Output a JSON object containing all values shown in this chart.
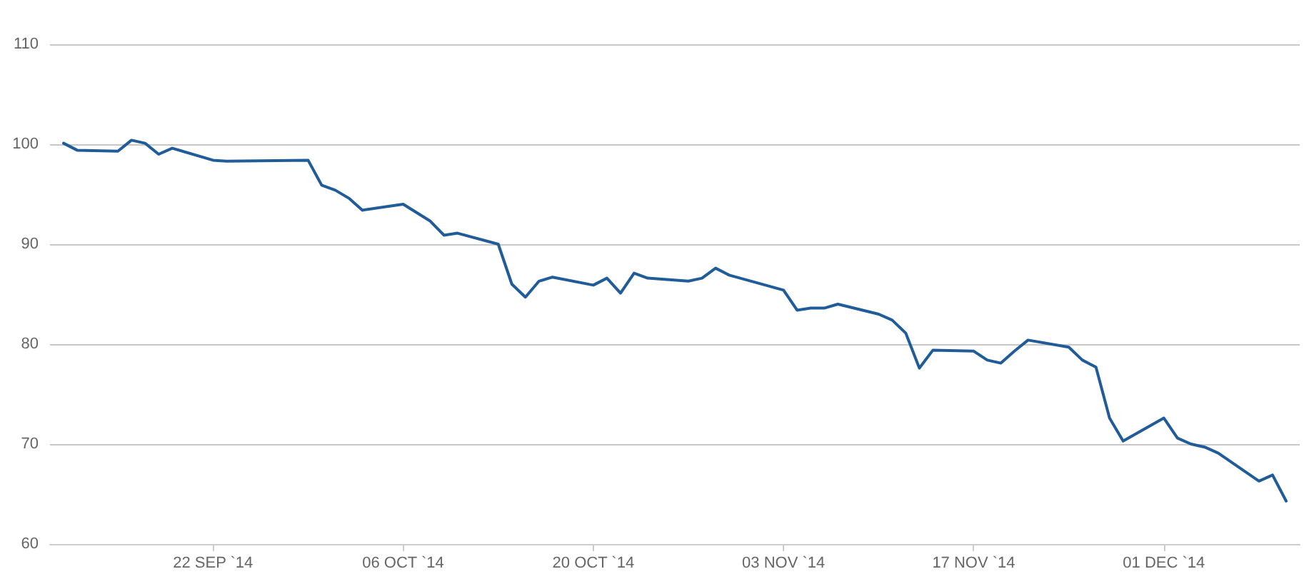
{
  "chart_data": {
    "type": "line",
    "x": [
      "2014-09-11",
      "2014-09-12",
      "2014-09-15",
      "2014-09-16",
      "2014-09-17",
      "2014-09-18",
      "2014-09-19",
      "2014-09-22",
      "2014-09-23",
      "2014-09-29",
      "2014-09-30",
      "2014-10-01",
      "2014-10-02",
      "2014-10-03",
      "2014-10-06",
      "2014-10-08",
      "2014-10-09",
      "2014-10-10",
      "2014-10-13",
      "2014-10-14",
      "2014-10-15",
      "2014-10-16",
      "2014-10-17",
      "2014-10-20",
      "2014-10-21",
      "2014-10-22",
      "2014-10-23",
      "2014-10-24",
      "2014-10-27",
      "2014-10-28",
      "2014-10-29",
      "2014-10-30",
      "2014-11-03",
      "2014-11-04",
      "2014-11-05",
      "2014-11-06",
      "2014-11-07",
      "2014-11-10",
      "2014-11-11",
      "2014-11-12",
      "2014-11-13",
      "2014-11-14",
      "2014-11-17",
      "2014-11-18",
      "2014-11-19",
      "2014-11-20",
      "2014-11-21",
      "2014-11-24",
      "2014-11-25",
      "2014-11-26",
      "2014-11-27",
      "2014-11-28",
      "2014-12-01",
      "2014-12-02",
      "2014-12-03",
      "2014-12-04",
      "2014-12-05",
      "2014-12-08",
      "2014-12-09",
      "2014-12-10"
    ],
    "series": [
      {
        "color": "#1f5c99",
        "values": [
          100.1,
          99.4,
          99.3,
          100.4,
          100.1,
          99.0,
          99.6,
          98.4,
          98.3,
          98.4,
          95.9,
          95.4,
          94.6,
          93.4,
          94.0,
          92.3,
          90.9,
          91.1,
          90.0,
          86.0,
          84.7,
          86.3,
          86.7,
          85.9,
          86.6,
          85.1,
          87.1,
          86.6,
          86.3,
          86.6,
          87.6,
          86.9,
          85.4,
          83.4,
          83.6,
          83.6,
          84.0,
          83.0,
          82.4,
          81.1,
          77.6,
          79.4,
          79.3,
          78.4,
          78.1,
          79.3,
          80.4,
          79.7,
          78.4,
          77.7,
          72.6,
          70.3,
          72.6,
          70.6,
          70.0,
          69.7,
          69.1,
          66.3,
          66.9,
          64.3
        ]
      }
    ],
    "xlim": [
      "2014-09-10",
      "2014-12-11"
    ],
    "xticks": [
      {
        "value": "2014-09-22",
        "label": "22 SEP `14"
      },
      {
        "value": "2014-10-06",
        "label": "06 OCT `14"
      },
      {
        "value": "2014-10-20",
        "label": "20 OCT `14"
      },
      {
        "value": "2014-11-03",
        "label": "03 NOV `14"
      },
      {
        "value": "2014-11-17",
        "label": "17 NOV `14"
      },
      {
        "value": "2014-12-01",
        "label": "01 DEC `14"
      }
    ],
    "ylim": [
      60,
      110
    ],
    "yticks": [
      60,
      70,
      80,
      90,
      100,
      110
    ],
    "grid": "y",
    "marker": "none",
    "line_style": "solid"
  }
}
